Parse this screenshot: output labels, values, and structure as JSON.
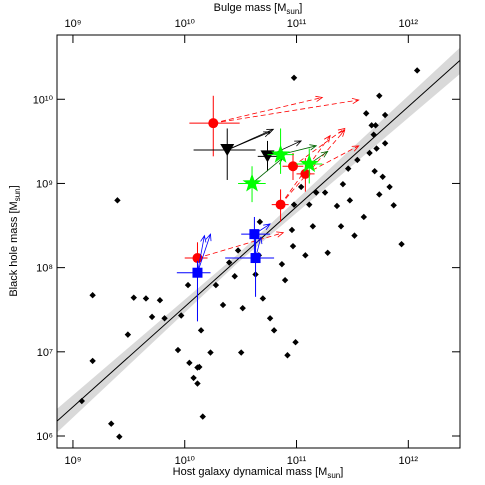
{
  "chart_data": {
    "type": "scatter",
    "title": [
      "Bulge mass [M",
      "sun",
      "]"
    ],
    "xlabel": [
      "Host galaxy dynamical mass [M",
      "sun",
      "]"
    ],
    "ylabel": [
      "Black hole mass [M",
      "sun",
      "]"
    ],
    "log_x": true,
    "log_y": true,
    "xlim": [
      720000000.0,
      2900000000000.0
    ],
    "ylim": [
      720000.0,
      58000000000.0
    ],
    "xticks": [
      {
        "value": 1000000000.0,
        "label": "10⁹"
      },
      {
        "value": 10000000000.0,
        "label": "10¹⁰"
      },
      {
        "value": 100000000000.0,
        "label": "10¹¹"
      },
      {
        "value": 1000000000000.0,
        "label": "10¹²"
      }
    ],
    "x2lim": [
      720000000.0,
      2900000000000.0
    ],
    "x2ticks": [
      {
        "value": 1000000000.0,
        "label": "10⁹"
      },
      {
        "value": 10000000000.0,
        "label": "10¹⁰"
      },
      {
        "value": 100000000000.0,
        "label": "10¹¹"
      },
      {
        "value": 1000000000000.0,
        "label": "10¹²"
      }
    ],
    "yticks": [
      {
        "value": 1000000.0,
        "label": "10⁶"
      },
      {
        "value": 10000000.0,
        "label": "10⁷"
      },
      {
        "value": 100000000.0,
        "label": "10⁸"
      },
      {
        "value": 1000000000.0,
        "label": "10⁹"
      },
      {
        "value": 10000000000.0,
        "label": "10¹⁰"
      }
    ],
    "color": "#000000",
    "x": [
      1200000000.0,
      1500000000.0,
      1500000000.0,
      2200000000.0,
      2600000000.0,
      2500000000.0,
      3100000000.0,
      3500000000.0,
      4500000000.0,
      5100000000.0,
      6000000000.0,
      6600000000.0,
      8700000000.0,
      9300000000.0,
      10700000000.0,
      11000000000.0,
      12000000000.0,
      13000000000.0,
      13000000000.0,
      13500000000.0,
      14000000000.0,
      14500000000.0,
      17000000000.0,
      19000000000.0,
      22000000000.0,
      25000000000.0,
      28000000000.0,
      30000000000.0,
      33000000000.0,
      32000000000.0,
      43000000000.0,
      46000000000.0,
      47000000000.0,
      50000000000.0,
      58000000000.0,
      63000000000.0,
      74000000000.0,
      79000000000.0,
      83000000000.0,
      91000000000.0,
      93000000000.0,
      95000000000.0,
      95000000000.0,
      98000000000.0,
      110000000000.0,
      120000000000.0,
      130000000000.0,
      140000000000.0,
      150000000000.0,
      180000000000.0,
      190000000000.0,
      230000000000.0,
      250000000000.0,
      260000000000.0,
      290000000000.0,
      300000000000.0,
      330000000000.0,
      350000000000.0,
      400000000000.0,
      420000000000.0,
      450000000000.0,
      470000000000.0,
      490000000000.0,
      500000000000.0,
      510000000000.0,
      520000000000.0,
      550000000000.0,
      550000000000.0,
      590000000000.0,
      620000000000.0,
      620000000000.0,
      680000000000.0,
      740000000000.0,
      870000000000.0,
      1200000000000.0
    ],
    "y": [
      2600000.0,
      47000000.0,
      7800000.0,
      1400000.0,
      980000.0,
      630000000.0,
      16000000.0,
      44000000.0,
      43000000.0,
      26000000.0,
      41000000.0,
      25000000.0,
      10500000.0,
      27000000.0,
      62000000.0,
      7400000.0,
      4900000.0,
      6500000.0,
      4200000.0,
      6600000.0,
      18000000.0,
      1700000.0,
      9800000.0,
      62000000.0,
      36000000.0,
      115000000.0,
      79000000.0,
      160000000.0,
      33000000.0,
      9800000.0,
      83000000.0,
      140000000.0,
      350000000.0,
      43000000.0,
      25000000.0,
      18000000.0,
      110000000.0,
      71000000.0,
      9100000.0,
      280000000.0,
      180000000.0,
      18000000000.0,
      560000000.0,
      13000000.0,
      910000000.0,
      140000000.0,
      560000000.0,
      310000000.0,
      780000000.0,
      780000000.0,
      150000000.0,
      540000000.0,
      310000000.0,
      980000000.0,
      1500000000.0,
      630000000.0,
      240000000.0,
      1900000000.0,
      400000000.0,
      6800000000.0,
      2300000000.0,
      4900000000.0,
      3800000000.0,
      1400000000.0,
      4900000000.0,
      2600000000.0,
      11000000000.0,
      740000000.0,
      1200000000.0,
      6500000000.0,
      3000000000.0,
      910000000.0,
      550000000.0,
      190000000.0,
      22000000000.0
    ],
    "fit": {
      "color": "#000000",
      "x": [
        720000000.0,
        2900000000000.0
      ],
      "y": [
        1500000.0,
        29000000000.0
      ]
    },
    "band": {
      "color": "#d9d9d9",
      "x": [
        720000000.0,
        30000000000.0,
        2900000000000.0
      ],
      "lower": [
        1100000.0,
        115000000.0,
        20000000000.0
      ],
      "upper": [
        2100000.0,
        145000000.0,
        41000000000.0
      ]
    },
    "groups": [
      {
        "marker": "circle",
        "color": "#ff0000",
        "arrow_color": "#ff0000",
        "arrow_dash": true,
        "points": [
          {
            "x": 18000000000.0,
            "y": 5200000000.0,
            "xerr": [
              11000000000.0,
              31000000000.0
            ],
            "yerr": [
              2100000000.0,
              11000000000.0
            ],
            "arrows": [
              [
                170000000000.0,
                10500000000.0
              ],
              [
                360000000000.0,
                9800000000.0
              ]
            ]
          },
          {
            "x": 13000000000.0,
            "y": 130000000.0,
            "xerr": [
              10000000000.0,
              16000000000.0
            ],
            "yerr": [
              75000000.0,
              200000000.0
            ],
            "arrows": [
              [
                76000000000.0,
                260000000.0
              ]
            ]
          },
          {
            "x": 72000000000.0,
            "y": 560000000.0,
            "xerr": [
              60000000000.0,
              85000000000.0
            ],
            "yerr": [
              350000000.0,
              850000000.0
            ],
            "arrows": [
              [
                200000000000.0,
                3700000000.0
              ],
              [
                270000000000.0,
                4300000000.0
              ]
            ]
          },
          {
            "x": 93000000000.0,
            "y": 1600000000.0,
            "xerr": [
              75000000000.0,
              115000000000.0
            ],
            "yerr": [
              1100000000.0,
              2300000000.0
            ],
            "arrows": [
              [
                270000000000.0,
                4500000000.0
              ]
            ]
          },
          {
            "x": 120000000000.0,
            "y": 1300000000.0,
            "xerr": [
              100000000000.0,
              145000000000.0
            ],
            "yerr": [
              800000000.0,
              2000000000.0
            ],
            "arrows": [
              [
                360000000000.0,
                2800000000.0
              ]
            ]
          }
        ]
      },
      {
        "marker": "triangle-down",
        "color": "#000000",
        "arrow_color": "#000000",
        "arrow_dash": false,
        "points": [
          {
            "x": 24000000000.0,
            "y": 2500000000.0,
            "xerr": [
              12000000000.0,
              43000000000.0
            ],
            "yerr": [
              1100000000.0,
              4500000000.0
            ],
            "arrows": [
              [
                58000000000.0,
                4100000000.0
              ],
              [
                62000000000.0,
                4400000000.0
              ]
            ]
          },
          {
            "x": 55000000000.0,
            "y": 2100000000.0,
            "xerr": [
              45000000000.0,
              68000000000.0
            ],
            "yerr": [
              1400000000.0,
              3200000000.0
            ],
            "arrows": [
              [
                110000000000.0,
                3200000000.0
              ]
            ]
          }
        ]
      },
      {
        "marker": "star",
        "color": "#00ff00",
        "arrow_color": "#006400",
        "arrow_dash": false,
        "points": [
          {
            "x": 40000000000.0,
            "y": 1000000000.0,
            "xerr": [
              30000000000.0,
              53000000000.0
            ],
            "yerr": [
              600000000.0,
              1600000000.0
            ],
            "arrows": [
              [
                75000000000.0,
                2000000000.0
              ]
            ]
          },
          {
            "x": 72000000000.0,
            "y": 2200000000.0,
            "xerr": [
              55000000000.0,
              95000000000.0
            ],
            "yerr": [
              1300000000.0,
              4500000000.0
            ],
            "arrows": [
              [
                150000000000.0,
                2800000000.0
              ]
            ]
          },
          {
            "x": 130000000000.0,
            "y": 1700000000.0,
            "xerr": [
              100000000000.0,
              170000000000.0
            ],
            "yerr": [
              1000000000.0,
              2600000000.0
            ],
            "arrows": [
              [
                190000000000.0,
                2400000000.0
              ]
            ]
          }
        ]
      },
      {
        "marker": "square",
        "color": "#0000ff",
        "arrow_color": "#0000ff",
        "arrow_dash": false,
        "points": [
          {
            "x": 13000000000.0,
            "y": 87000000.0,
            "xerr": [
              8500000000.0,
              17000000000.0
            ],
            "yerr": [
              23000000.0,
              120000000.0
            ],
            "arrows": [
              [
                15000000000.0,
                240000000.0
              ],
              [
                17000000000.0,
                250000000.0
              ]
            ]
          },
          {
            "x": 42000000000.0,
            "y": 250000000.0,
            "xerr": [
              32000000000.0,
              58000000000.0
            ],
            "yerr": [
              120000000.0,
              400000000.0
            ],
            "arrows": [
              [
                58000000000.0,
                330000000.0
              ]
            ]
          },
          {
            "x": 43000000000.0,
            "y": 130000000.0,
            "xerr": [
              23000000000.0,
              63000000000.0
            ],
            "yerr": [
              45000000.0,
              240000000.0
            ],
            "arrows": [
              [
                48000000000.0,
                230000000.0
              ]
            ]
          }
        ]
      }
    ]
  }
}
